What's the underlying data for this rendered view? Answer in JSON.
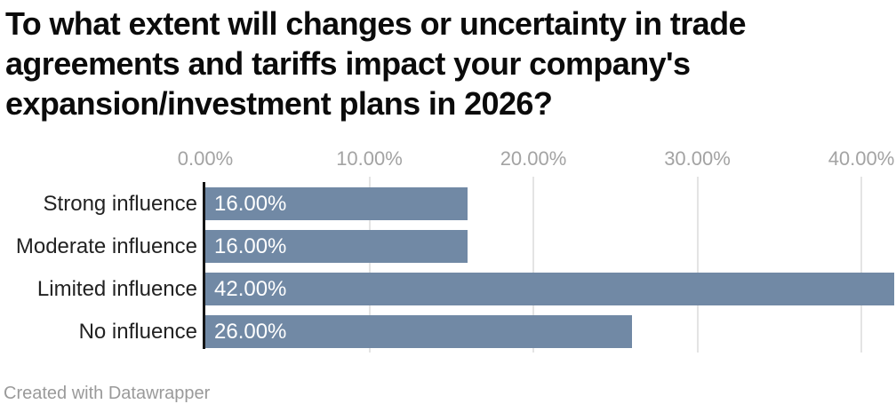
{
  "title_lines": [
    "To what extent will changes or uncertainty in trade",
    "agreements and tariffs impact your company's",
    "expansion/investment plans in 2026?"
  ],
  "footer": {
    "credit": "Created with Datawrapper"
  },
  "chart_data": {
    "type": "bar",
    "orientation": "horizontal",
    "title": "To what extent will changes or uncertainty in trade agreements and tariffs impact your company's expansion/investment plans in 2026?",
    "categories": [
      "Strong influence",
      "Moderate influence",
      "Limited influence",
      "No influence"
    ],
    "values": [
      16,
      16,
      42,
      26
    ],
    "value_labels": [
      "16.00%",
      "16.00%",
      "42.00%",
      "26.00%"
    ],
    "x_axis": {
      "ticks": [
        {
          "value": 0,
          "label": "0.00%"
        },
        {
          "value": 10,
          "label": "10.00%"
        },
        {
          "value": 20,
          "label": "20.00%"
        },
        {
          "value": 30,
          "label": "30.00%"
        },
        {
          "value": 40,
          "label": "40.00%"
        }
      ],
      "xlim": [
        0,
        42.1
      ],
      "grid": true
    },
    "colors": {
      "bar": "#7189a5",
      "gridline": "#e4e4e4",
      "axis_line": "#141414",
      "tick_text": "#a3a3a3",
      "category_text": "#222222",
      "value_text": "#ffffff"
    },
    "source_note": "Created with Datawrapper"
  }
}
